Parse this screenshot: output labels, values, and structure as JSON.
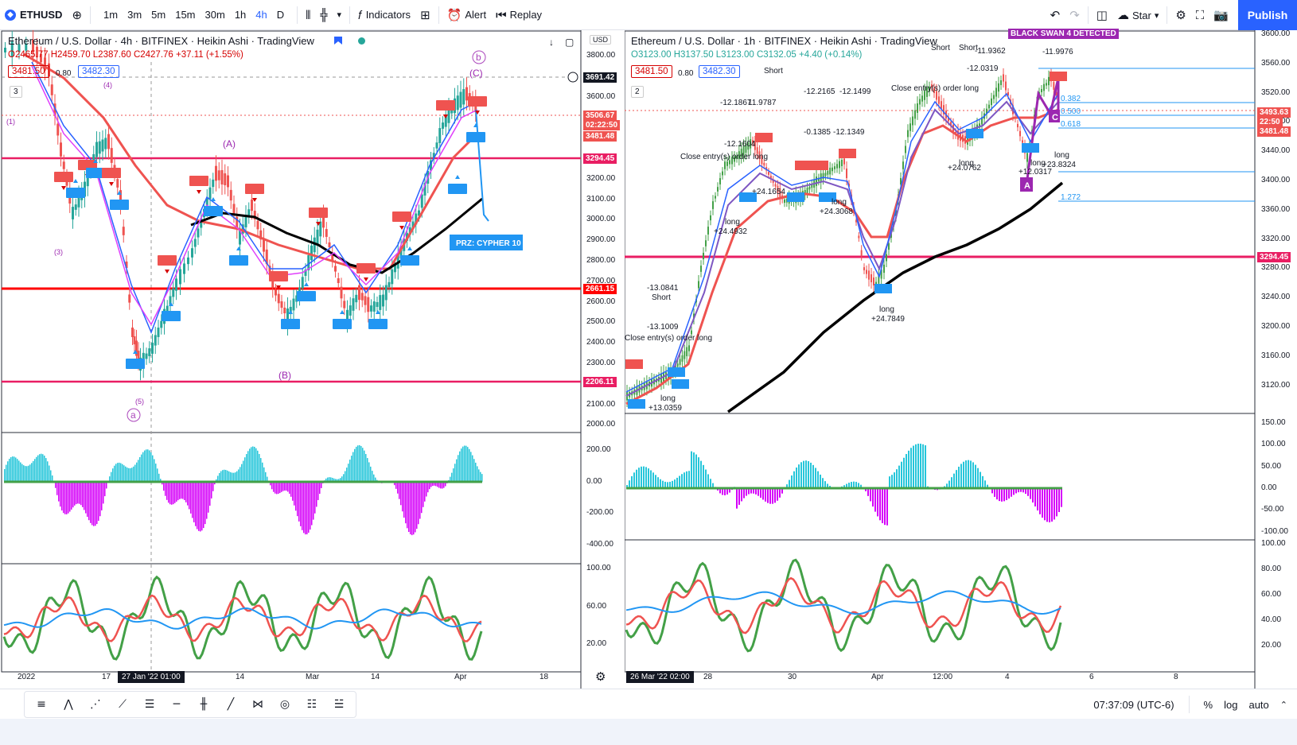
{
  "toolbar": {
    "symbol": "ETHUSD",
    "timeframes": [
      "1m",
      "3m",
      "5m",
      "15m",
      "30m",
      "1h",
      "4h",
      "D"
    ],
    "active_timeframe": "4h",
    "indicators_label": "Indicators",
    "alert_label": "Alert",
    "replay_label": "Replay",
    "star_label": "Star",
    "publish_label": "Publish"
  },
  "left_chart": {
    "legend": "Ethereum / U.S. Dollar · 4h · BITFINEX · Heikin Ashi · TradingView",
    "ohlc": "O2465.77 H2459.70 L2387.60 C2427.76 +37.11 (+1.55%)",
    "bid": "3481.50",
    "spread": "0.80",
    "ask": "3482.30",
    "pane_count": "3",
    "currency": "USD",
    "price_axis": [
      "3800.00",
      "3700.00",
      "3600.00",
      "3500.00",
      "3400.00",
      "3300.00",
      "3200.00",
      "3100.00",
      "3000.00",
      "2900.00",
      "2800.00",
      "2700.00",
      "2600.00",
      "2500.00",
      "2400.00",
      "2300.00",
      "2200.00",
      "2100.00",
      "2000.00"
    ],
    "tags": {
      "crosshair": "3691.42",
      "last_price": "3506.67",
      "countdown": "02:22:50",
      "bid": "3481.48",
      "res1": "3294.45",
      "sup1": "2661.15",
      "sup2": "2206.11"
    },
    "osc_axis": [
      "200.00",
      "0.00",
      "-200.00",
      "-400.00"
    ],
    "rsi_axis": [
      "100.00",
      "60.00",
      "20.00"
    ],
    "time_axis": [
      "2022",
      "17",
      "14",
      "Mar",
      "14",
      "Apr",
      "18"
    ],
    "time_tag": "27 Jan '22   01:00",
    "annotations": {
      "wave_b": "b",
      "wave_C": "(C)",
      "wave_A": "(A)",
      "wave_B": "(B)",
      "wave_a": "a",
      "wave_1": "(1)",
      "wave_3": "(3)",
      "wave_4": "(4)",
      "wave_5": "(5)",
      "prz": "PRZ: CYPHER 10",
      "B_label": "B"
    }
  },
  "right_chart": {
    "legend": "Ethereum / U.S. Dollar · 1h · BITFINEX · Heikin Ashi · TradingView",
    "ohlc": "O3123.00 H3137.50 L3123.00 C3132.05 +4.40 (+0.14%)",
    "bid": "3481.50",
    "spread": "0.80",
    "ask": "3482.30",
    "pane_count": "2",
    "price_axis": [
      "3600.00",
      "3560.00",
      "3520.00",
      "3480.00",
      "3440.00",
      "3400.00",
      "3360.00",
      "3320.00",
      "3280.00",
      "3240.00",
      "3200.00",
      "3160.00",
      "3120.00"
    ],
    "tags": {
      "last_price": "3493.63",
      "countdown": "22:50",
      "bid": "3481.48",
      "res1": "3294.45"
    },
    "fib": [
      "0.382",
      "0.500",
      "0.618",
      "1.272"
    ],
    "osc_axis": [
      "150.00",
      "100.00",
      "50.00",
      "0.00",
      "-50.00",
      "-100.00"
    ],
    "rsi_axis": [
      "100.00",
      "80.00",
      "60.00",
      "40.00",
      "20.00"
    ],
    "time_axis": [
      "28",
      "30",
      "Apr",
      "12:00",
      "4",
      "6",
      "8"
    ],
    "time_tag": "26 Mar '22   02:00",
    "banner": "BLACK SWAN 4 DETECTED",
    "annotations": {
      "a1": "-13.0841",
      "a2": "Short",
      "a3": "-13.1009",
      "a4": "Close entry(s) order long",
      "a5": "long",
      "a6": "+13.0359",
      "a7": "-12.1604",
      "a8": "Close entry(s) order long",
      "a9": "long",
      "a10": "+24.4932",
      "a11": "+24.1654",
      "a12": "-12.1867",
      "a13": "11.9787",
      "a14": "Short",
      "a15": "-12.2165",
      "a16": "-12.1499",
      "a17": "-0.1385",
      "a18": "-12.1349",
      "a19": "long",
      "a20": "+24.3068",
      "a21": "long",
      "a22": "+24.7849",
      "a23": "Close entry(s) order long",
      "a24": "-12.0319",
      "a25": "long",
      "a26": "+24.0762",
      "a27": "-11.9362",
      "a28": "Short",
      "a29": "long",
      "a30": "+12.0317",
      "a31": "long",
      "a32": "+23.8324",
      "a33": "Short",
      "a34": "-11.9976",
      "A_label": "A",
      "C_label": "C"
    }
  },
  "status": {
    "clock": "07:37:09 (UTC-6)",
    "percent": "%",
    "log": "log",
    "auto": "auto"
  },
  "colors": {
    "accent": "#2962ff",
    "sup_res": "#e91e63",
    "red_line": "#ff0000",
    "bull": "#26a69a",
    "bear": "#ef5350",
    "ema_black": "#000000",
    "osc_pos": "#26c6da",
    "osc_neg": "#d500f9"
  }
}
